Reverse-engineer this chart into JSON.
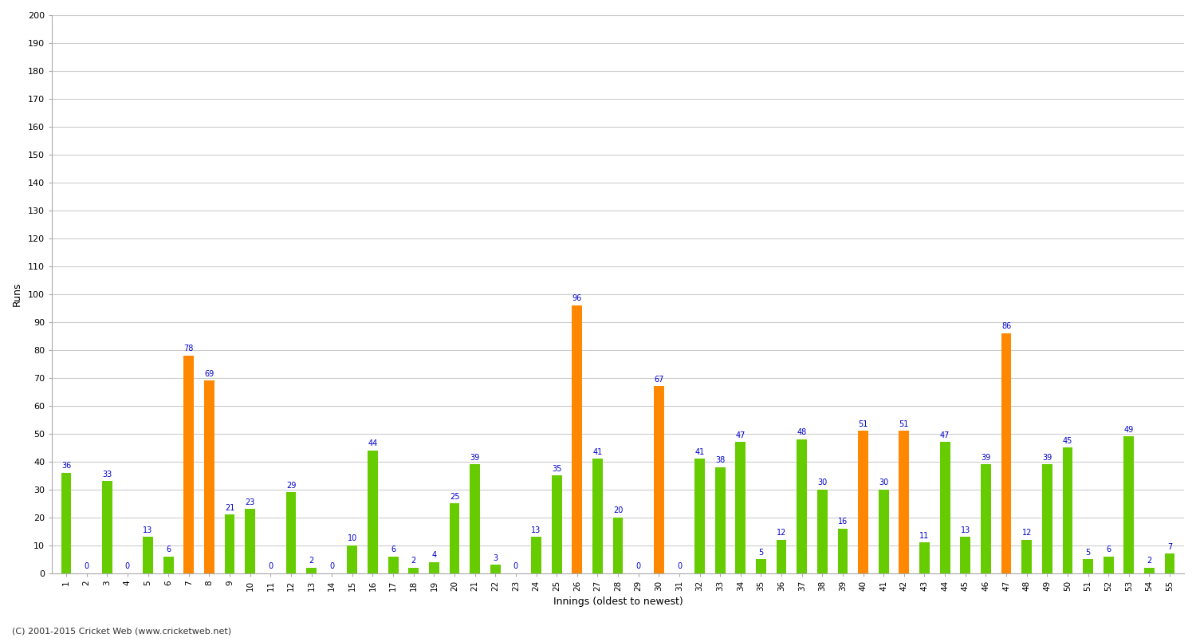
{
  "values": [
    36,
    0,
    33,
    0,
    13,
    6,
    78,
    69,
    21,
    23,
    0,
    29,
    2,
    0,
    10,
    44,
    6,
    2,
    4,
    25,
    39,
    3,
    0,
    13,
    35,
    96,
    41,
    20,
    0,
    67,
    0,
    41,
    38,
    47,
    5,
    12,
    48,
    30,
    16,
    51,
    30,
    51,
    11,
    47,
    13,
    39,
    86,
    12,
    39,
    45,
    5,
    6,
    49,
    2,
    7
  ],
  "labels": [
    "1",
    "2",
    "3",
    "4",
    "5",
    "6",
    "7",
    "8",
    "9",
    "10",
    "11",
    "12",
    "13",
    "14",
    "15",
    "16",
    "17",
    "18",
    "19",
    "20",
    "21",
    "22",
    "23",
    "24",
    "25",
    "26",
    "27",
    "28",
    "29",
    "30",
    "31",
    "32",
    "33",
    "34",
    "35",
    "36",
    "37",
    "38",
    "39",
    "40",
    "41",
    "42",
    "43",
    "44",
    "45",
    "46",
    "47",
    "48",
    "49",
    "50",
    "51",
    "52",
    "53",
    "54",
    "55"
  ],
  "fifty_threshold": 50,
  "green_color": "#66cc00",
  "orange_color": "#ff8800",
  "ylabel": "Runs",
  "xlabel": "Innings (oldest to newest)",
  "ylim": [
    0,
    200
  ],
  "yticks": [
    0,
    10,
    20,
    30,
    40,
    50,
    60,
    70,
    80,
    90,
    100,
    110,
    120,
    130,
    140,
    150,
    160,
    170,
    180,
    190,
    200
  ],
  "label_color": "#0000cc",
  "label_fontsize": 7,
  "background_color": "#ffffff",
  "grid_color": "#cccccc",
  "footer": "(C) 2001-2015 Cricket Web (www.cricketweb.net)"
}
